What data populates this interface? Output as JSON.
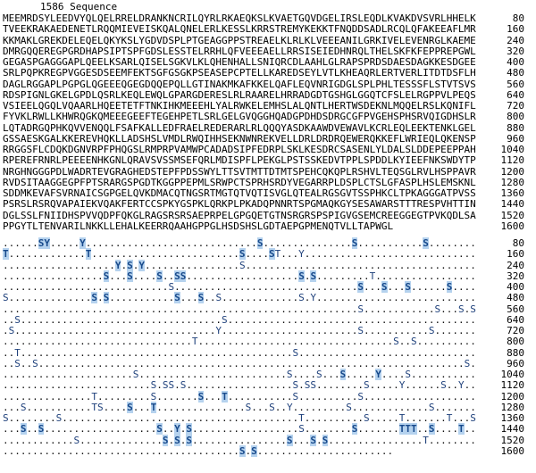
{
  "header": {
    "title": "1586 Sequence"
  },
  "colors": {
    "background": "#ffffff",
    "sequence_text": "#000000",
    "site_letter": "#1d3f7a",
    "site_highlight_bg": "#b5d2ee",
    "site_highlight_letter": "#17498b"
  },
  "sequence_length": 1586,
  "sequence_block": {
    "rows": [
      {
        "end": 80,
        "seq": "MEEMRDSYLEEDVYQLQELRRELDRANKNCRILQYRLRKAEQKSLKVAETGQVDGELIRSLEQDLKVAKDVSVRLHHELK"
      },
      {
        "end": 160,
        "seq": "TVEEKRAKAEDENETLRQQMIEVEISKQALQNELERLKESSLKRRSTREMYKEKKTFNQDDSADLRCQLQFAKEEAFLMR"
      },
      {
        "end": 240,
        "seq": "KKMAKLGREKDELEQELQKYKSLYGDVDSPLPTGEAGGPPSTREAELKLRLKLVEEEANILGRKIVELEVENRGLKAEME"
      },
      {
        "end": 320,
        "seq": "DMRGQQEREGPGRDHAPSIPTSPFGDSLESSTELRRHLQFVEEEAELLRRSISEIEDHNRQLTHELSKFKFEPPREPGWL"
      },
      {
        "end": 400,
        "seq": "GEGASPGAGGGAPLQEELKSARLQISELSGKVLKLQHENHALLSNIQRCDLAAHLGLRAPSPRDSDAESDAGKKESDGEE"
      },
      {
        "end": 480,
        "seq": "SRLPQPKREGPVGGESDSEEMFEKTSGFGSGKPSEASEPCPTELLKAREDSEYLVTLKHEAQRLERTVERLITDTDSFLH"
      },
      {
        "end": 560,
        "seq": "DAGLRGGAPLPGPGLQGEEEQGEGDQQEPQLLGTINAKMKAFKKELQAFLEQVNRIGDGLSPLPHLTESSSFLSTVTSVS"
      },
      {
        "end": 640,
        "seq": "RDSPIGNLGKELGPDLQSRLKEQLEWQLGPARGDERESLRLRAARELHRRADGDTGSHGLGGQTCFSLELRGPPVLPEQS"
      },
      {
        "end": 720,
        "seq": "VSIEELQGQLVQAARLHQEETETFTNKIHKMEEEHLYALRWKELEMHSLALQNTLHERTWSDEKNLMQQELRSLKQNIFL"
      },
      {
        "end": 800,
        "seq": "FYVKLRWLLKHWRQGKQMEEEGEEFTEGEHPETLSRLGELGVQGGHQADGPDHDSDRGCGFPVGEHSPHSRVQIGDHSLR"
      },
      {
        "end": 880,
        "seq": "LQTADRGQPHKQVVENQQLFSAFKALLEDFRAELREDERARLRLQQQYASDKAAWDVEWAVLKCRLEQLEEKTENKLGEL"
      },
      {
        "end": 960,
        "seq": "GSSAESKGALKKEREVHQKLLADSHSLVMDLRWQIHHSEKNWNREKVELLDRLDRDRQEWERQKKEFLWRIEQLQKENSP"
      },
      {
        "end": 1040,
        "seq": "RRGGSFLCDQKDGNVRPFPHQGSLRMPRPVAMWPCADADSIPFEDRPLSKLKESDRCSASENLYLDALSLDDEPEEPPAH"
      },
      {
        "end": 1120,
        "seq": "RPEREFRNRLPEEEENHKGNLQRAVSVSSMSEFQRLMDISPFLPEKGLPSTSSKEDVTPPLSPDDLKYIEEFNKSWDYTP"
      },
      {
        "end": 1200,
        "seq": "NRGHNGGGPDLWADRTEVGRAGHEDSTEPFPDSSWYLTTSVTMTTDTMTSPEHCQKQPLRSHVLTEQSGLRVLHSPPAVR"
      },
      {
        "end": 1280,
        "seq": "RVDSITAAGGEGPFPTSRARGSPGDTKGGPPEPMLSRWPCTSPRHSRDYVEGARRPLDSPLCTSLGFASPLHSLEMSKNL"
      },
      {
        "end": 1360,
        "seq": "SDDMKEVAFSVRNAICSGPGELQVKDMACQTNGSRTMGTQTVQTISVGLQTEALRGSGVTSSPHKCLTPKAGGGATPVSS"
      },
      {
        "end": 1440,
        "seq": "PSRSLRSRQVAPAIEKVQAKFERTCCSPKYGSPKLQRKPLPKADQPNNRTSPGMAQKGYSESAWARSTTTRESPVHTTIN"
      },
      {
        "end": 1520,
        "seq": "DGLSSLFNIIDHSPVVQDPFQKGLRAGSRSRSAEPRPELGPGQETGTNSRGRSPSPIGVGSEMCREEGGEGTPVKQDLSA"
      },
      {
        "end": 1600,
        "seq": "PPGYTLTENVARILNKKLLEHALKEERRQAAHGPPGLHSDSHSLGDTAEPGPMENQTVLLTAPWGL"
      }
    ]
  },
  "annotation_block": {
    "dot_char": ".",
    "rows": [
      {
        "end": 80,
        "length": 80,
        "sites": [
          {
            "pos": 7,
            "letter": "S",
            "hl": true
          },
          {
            "pos": 8,
            "letter": "Y",
            "hl": true
          },
          {
            "pos": 14,
            "letter": "Y",
            "hl": true
          },
          {
            "pos": 44,
            "letter": "S",
            "hl": true
          },
          {
            "pos": 60,
            "letter": "S",
            "hl": true
          },
          {
            "pos": 72,
            "letter": "S",
            "hl": true
          }
        ]
      },
      {
        "end": 160,
        "length": 80,
        "sites": [
          {
            "pos": 1,
            "letter": "T",
            "hl": true
          },
          {
            "pos": 15,
            "letter": "T",
            "hl": true
          },
          {
            "pos": 41,
            "letter": "S",
            "hl": true
          },
          {
            "pos": 46,
            "letter": "S",
            "hl": true
          },
          {
            "pos": 47,
            "letter": "T",
            "hl": false
          },
          {
            "pos": 51,
            "letter": "Y",
            "hl": false
          }
        ]
      },
      {
        "end": 240,
        "length": 80,
        "sites": [
          {
            "pos": 20,
            "letter": "Y",
            "hl": true
          },
          {
            "pos": 22,
            "letter": "S",
            "hl": true
          },
          {
            "pos": 24,
            "letter": "Y",
            "hl": true
          },
          {
            "pos": 41,
            "letter": "S",
            "hl": false
          }
        ]
      },
      {
        "end": 320,
        "length": 80,
        "sites": [
          {
            "pos": 18,
            "letter": "S",
            "hl": true
          },
          {
            "pos": 22,
            "letter": "S",
            "hl": true
          },
          {
            "pos": 27,
            "letter": "S",
            "hl": true
          },
          {
            "pos": 30,
            "letter": "S",
            "hl": true
          },
          {
            "pos": 31,
            "letter": "S",
            "hl": true
          },
          {
            "pos": 51,
            "letter": "S",
            "hl": true
          },
          {
            "pos": 53,
            "letter": "S",
            "hl": true
          },
          {
            "pos": 63,
            "letter": "T",
            "hl": false
          }
        ]
      },
      {
        "end": 400,
        "length": 80,
        "sites": [
          {
            "pos": 29,
            "letter": "S",
            "hl": false
          },
          {
            "pos": 61,
            "letter": "S",
            "hl": true
          },
          {
            "pos": 65,
            "letter": "S",
            "hl": true
          },
          {
            "pos": 69,
            "letter": "S",
            "hl": true
          },
          {
            "pos": 76,
            "letter": "S",
            "hl": true
          }
        ]
      },
      {
        "end": 480,
        "length": 80,
        "sites": [
          {
            "pos": 1,
            "letter": "S",
            "hl": false
          },
          {
            "pos": 16,
            "letter": "S",
            "hl": true
          },
          {
            "pos": 18,
            "letter": "S",
            "hl": true
          },
          {
            "pos": 30,
            "letter": "S",
            "hl": true
          },
          {
            "pos": 34,
            "letter": "S",
            "hl": true
          },
          {
            "pos": 37,
            "letter": "S",
            "hl": false
          },
          {
            "pos": 51,
            "letter": "S",
            "hl": false
          },
          {
            "pos": 53,
            "letter": "Y",
            "hl": false
          }
        ]
      },
      {
        "end": 560,
        "length": 80,
        "sites": [
          {
            "pos": 61,
            "letter": "S",
            "hl": false
          },
          {
            "pos": 74,
            "letter": "S",
            "hl": false
          },
          {
            "pos": 78,
            "letter": "S",
            "hl": false
          },
          {
            "pos": 80,
            "letter": "S",
            "hl": false
          }
        ]
      },
      {
        "end": 640,
        "length": 80,
        "sites": [
          {
            "pos": 3,
            "letter": "S",
            "hl": false
          },
          {
            "pos": 38,
            "letter": "S",
            "hl": false
          }
        ]
      },
      {
        "end": 720,
        "length": 80,
        "sites": [
          {
            "pos": 2,
            "letter": "S",
            "hl": false
          },
          {
            "pos": 37,
            "letter": "Y",
            "hl": false
          },
          {
            "pos": 61,
            "letter": "S",
            "hl": false
          },
          {
            "pos": 73,
            "letter": "S",
            "hl": false
          }
        ]
      },
      {
        "end": 800,
        "length": 80,
        "sites": [
          {
            "pos": 33,
            "letter": "T",
            "hl": false
          },
          {
            "pos": 67,
            "letter": "S",
            "hl": false
          },
          {
            "pos": 70,
            "letter": "S",
            "hl": false
          }
        ]
      },
      {
        "end": 880,
        "length": 80,
        "sites": [
          {
            "pos": 3,
            "letter": "T",
            "hl": false
          },
          {
            "pos": 50,
            "letter": "S",
            "hl": false
          }
        ]
      },
      {
        "end": 960,
        "length": 80,
        "sites": [
          {
            "pos": 3,
            "letter": "S",
            "hl": false
          },
          {
            "pos": 6,
            "letter": "S",
            "hl": false
          },
          {
            "pos": 79,
            "letter": "S",
            "hl": false
          }
        ]
      },
      {
        "end": 1040,
        "length": 80,
        "sites": [
          {
            "pos": 23,
            "letter": "S",
            "hl": false
          },
          {
            "pos": 49,
            "letter": "S",
            "hl": false
          },
          {
            "pos": 54,
            "letter": "S",
            "hl": false
          },
          {
            "pos": 58,
            "letter": "S",
            "hl": true
          },
          {
            "pos": 64,
            "letter": "Y",
            "hl": true
          },
          {
            "pos": 69,
            "letter": "S",
            "hl": false
          }
        ]
      },
      {
        "end": 1120,
        "length": 80,
        "sites": [
          {
            "pos": 26,
            "letter": "S",
            "hl": false
          },
          {
            "pos": 28,
            "letter": "S",
            "hl": false
          },
          {
            "pos": 29,
            "letter": "S",
            "hl": false
          },
          {
            "pos": 31,
            "letter": "S",
            "hl": false
          },
          {
            "pos": 50,
            "letter": "S",
            "hl": false
          },
          {
            "pos": 52,
            "letter": "S",
            "hl": false
          },
          {
            "pos": 53,
            "letter": "S",
            "hl": false
          },
          {
            "pos": 62,
            "letter": "S",
            "hl": false
          },
          {
            "pos": 68,
            "letter": "Y",
            "hl": false
          },
          {
            "pos": 75,
            "letter": "S",
            "hl": false
          },
          {
            "pos": 78,
            "letter": "Y",
            "hl": false
          }
        ]
      },
      {
        "end": 1200,
        "length": 80,
        "sites": [
          {
            "pos": 16,
            "letter": "T",
            "hl": false
          },
          {
            "pos": 26,
            "letter": "S",
            "hl": false
          },
          {
            "pos": 34,
            "letter": "S",
            "hl": true
          },
          {
            "pos": 38,
            "letter": "T",
            "hl": true
          },
          {
            "pos": 50,
            "letter": "S",
            "hl": false
          },
          {
            "pos": 61,
            "letter": "S",
            "hl": false
          }
        ]
      },
      {
        "end": 1280,
        "length": 80,
        "sites": [
          {
            "pos": 4,
            "letter": "S",
            "hl": false
          },
          {
            "pos": 16,
            "letter": "T",
            "hl": false
          },
          {
            "pos": 17,
            "letter": "S",
            "hl": false
          },
          {
            "pos": 22,
            "letter": "S",
            "hl": true
          },
          {
            "pos": 26,
            "letter": "T",
            "hl": true
          },
          {
            "pos": 42,
            "letter": "S",
            "hl": false
          },
          {
            "pos": 46,
            "letter": "S",
            "hl": false
          },
          {
            "pos": 49,
            "letter": "Y",
            "hl": false
          },
          {
            "pos": 59,
            "letter": "S",
            "hl": false
          },
          {
            "pos": 73,
            "letter": "S",
            "hl": false
          }
        ]
      },
      {
        "end": 1360,
        "length": 80,
        "sites": [
          {
            "pos": 1,
            "letter": "S",
            "hl": false
          },
          {
            "pos": 10,
            "letter": "S",
            "hl": false
          },
          {
            "pos": 51,
            "letter": "T",
            "hl": false
          },
          {
            "pos": 62,
            "letter": "S",
            "hl": false
          },
          {
            "pos": 68,
            "letter": "T",
            "hl": false
          },
          {
            "pos": 76,
            "letter": "T",
            "hl": false
          },
          {
            "pos": 80,
            "letter": "S",
            "hl": false
          }
        ]
      },
      {
        "end": 1440,
        "length": 80,
        "sites": [
          {
            "pos": 4,
            "letter": "S",
            "hl": true
          },
          {
            "pos": 7,
            "letter": "S",
            "hl": true
          },
          {
            "pos": 27,
            "letter": "S",
            "hl": true
          },
          {
            "pos": 30,
            "letter": "Y",
            "hl": true
          },
          {
            "pos": 32,
            "letter": "S",
            "hl": true
          },
          {
            "pos": 51,
            "letter": "S",
            "hl": false
          },
          {
            "pos": 60,
            "letter": "S",
            "hl": true
          },
          {
            "pos": 68,
            "letter": "T",
            "hl": true
          },
          {
            "pos": 69,
            "letter": "T",
            "hl": true
          },
          {
            "pos": 70,
            "letter": "T",
            "hl": true
          },
          {
            "pos": 73,
            "letter": "S",
            "hl": true
          },
          {
            "pos": 78,
            "letter": "T",
            "hl": true
          }
        ]
      },
      {
        "end": 1520,
        "length": 80,
        "sites": [
          {
            "pos": 13,
            "letter": "S",
            "hl": false
          },
          {
            "pos": 28,
            "letter": "S",
            "hl": true
          },
          {
            "pos": 30,
            "letter": "S",
            "hl": true
          },
          {
            "pos": 32,
            "letter": "S",
            "hl": true
          },
          {
            "pos": 49,
            "letter": "S",
            "hl": true
          },
          {
            "pos": 53,
            "letter": "S",
            "hl": true
          },
          {
            "pos": 55,
            "letter": "S",
            "hl": true
          },
          {
            "pos": 72,
            "letter": "T",
            "hl": false
          }
        ]
      },
      {
        "end": 1600,
        "length": 66,
        "sites": [
          {
            "pos": 41,
            "letter": "S",
            "hl": true
          },
          {
            "pos": 43,
            "letter": "S",
            "hl": true
          }
        ]
      }
    ]
  }
}
